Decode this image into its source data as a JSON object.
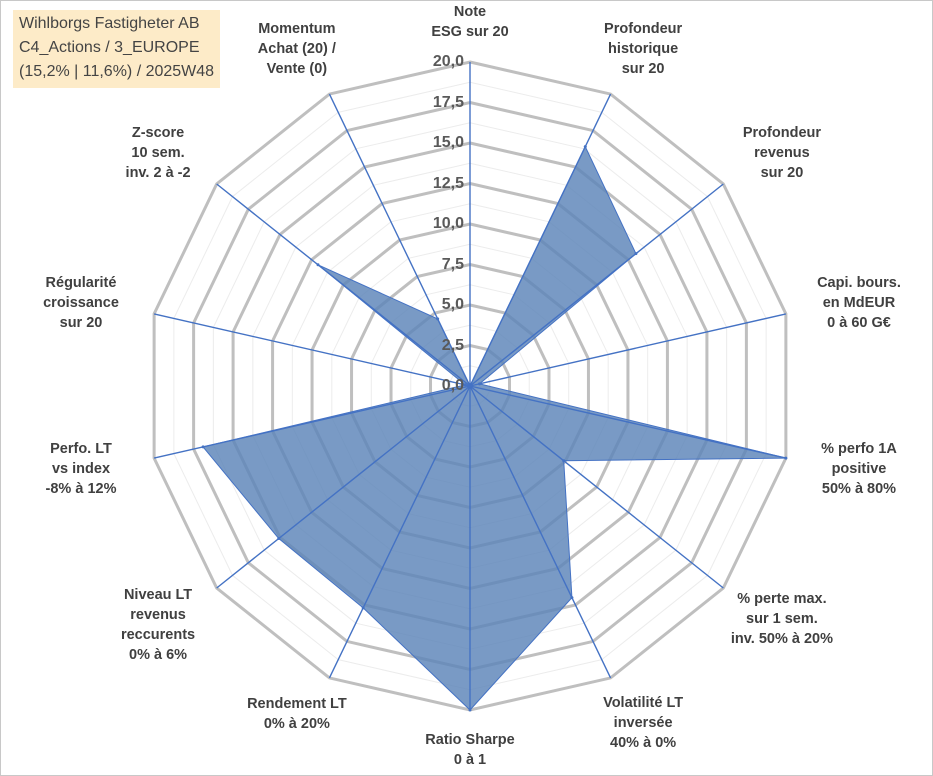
{
  "title_box": {
    "line1": "Wihlborgs Fastigheter AB",
    "line2": "C4_Actions / 3_EUROPE",
    "line3": "(15,2% | 11,6%) / 2025W48"
  },
  "chart_data": {
    "type": "radar",
    "range": [
      0,
      20
    ],
    "tick_step": 2.5,
    "tick_labels": [
      "0,0",
      "2,5",
      "5,0",
      "7,5",
      "10,0",
      "12,5",
      "15,0",
      "17,5",
      "20,0"
    ],
    "grid": true,
    "fill_color": "#5b84b8",
    "line_color": "#4472c4",
    "grid_color": "#bfbfbf",
    "axes": [
      {
        "label": "Note\nESG sur 20",
        "value": 0
      },
      {
        "label": "Profondeur\nhistorique\nsur 20",
        "value": 16.4
      },
      {
        "label": "Profondeur\nrevenus\nsur 20",
        "value": 13.1
      },
      {
        "label": "Capi. bours.\nen MdEUR\n0 à 60 G€",
        "value": 0.6
      },
      {
        "label": "% perfo 1A\npositive\n50% à 80%",
        "value": 20
      },
      {
        "label": "% perte max.\nsur 1 sem.\ninv. 50% à 20%",
        "value": 7.4
      },
      {
        "label": "Volatilité LT\ninversée\n40% à 0%",
        "value": 14.5
      },
      {
        "label": "Ratio Sharpe\n0 à 1",
        "value": 20
      },
      {
        "label": "Rendement LT\n0% à 20%",
        "value": 15.2
      },
      {
        "label": "Niveau LT\nrevenus\nreccurents\n0% à 6%",
        "value": 15.1
      },
      {
        "label": "Perfo. LT\nvs index\n-8% à 12%",
        "value": 16.9
      },
      {
        "label": "Régularité\ncroissance\nsur 20",
        "value": 0.3
      },
      {
        "label": "Z-score\n10 sem.\ninv. 2 à -2",
        "value": 12.0
      },
      {
        "label": "Momentum\nAchat (20) /\nVente (0)",
        "value": 4.6
      }
    ]
  }
}
